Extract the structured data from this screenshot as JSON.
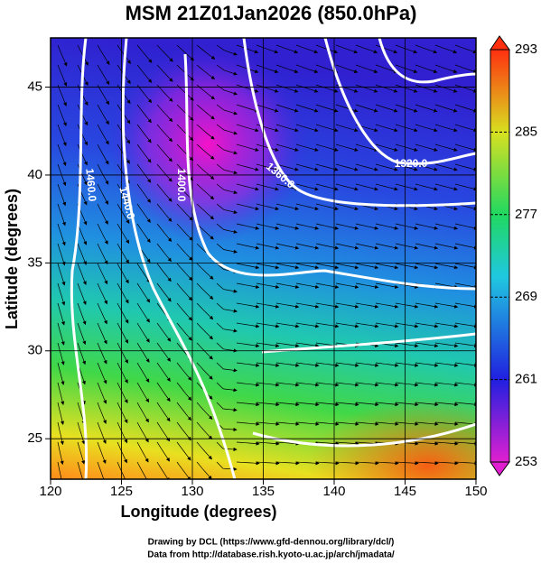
{
  "chart_data": {
    "type": "map",
    "title": "MSM 21Z01Jan2026 (850.0hPa)",
    "xlabel": "Longitude (degrees)",
    "ylabel": "Latitude  (degrees)",
    "xlim": [
      120,
      150
    ],
    "xticks": [
      120,
      125,
      130,
      135,
      140,
      145,
      150
    ],
    "ylim": [
      22.7,
      47.8
    ],
    "yticks": [
      25,
      30,
      35,
      40,
      45
    ],
    "grid": true,
    "colorbar": {
      "lim": [
        253,
        293
      ],
      "ticks": [
        253,
        261,
        269,
        277,
        285,
        293
      ]
    },
    "contour_labels": [
      "1460.0",
      "1440.0",
      "1400.0",
      "1360.0",
      "1320.0"
    ],
    "credits": [
      "Drawing by DCL (https://www.gfd-dennou.org/library/dcl/)",
      "Data from http://database.rish.kyoto-u.ac.jp/arch/jmadata/"
    ]
  }
}
